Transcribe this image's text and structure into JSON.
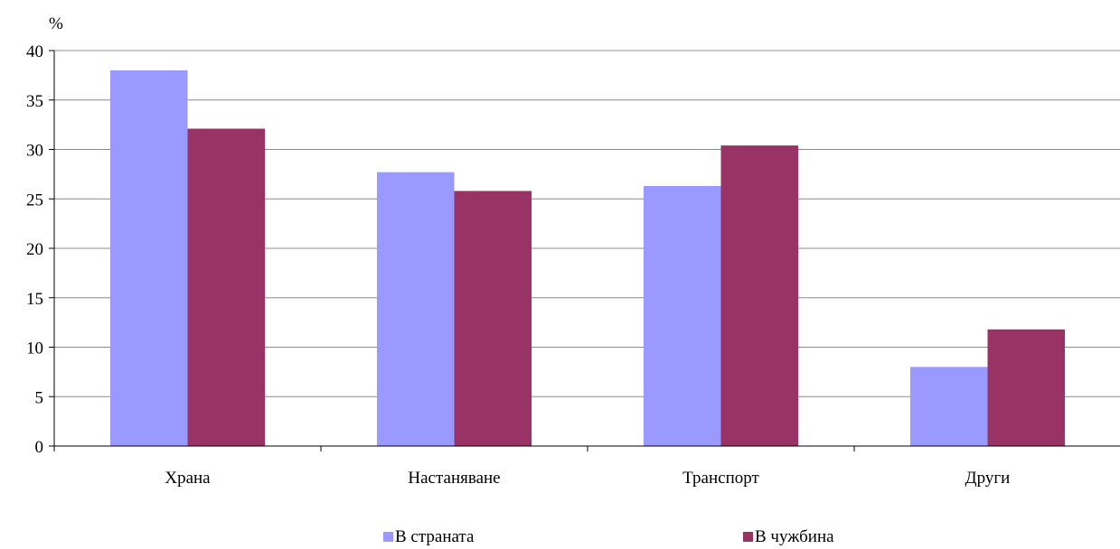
{
  "chart_data": {
    "type": "bar",
    "ylabel": "%",
    "ylim": [
      0,
      40
    ],
    "yticks": [
      0,
      5,
      10,
      15,
      20,
      25,
      30,
      35,
      40
    ],
    "grid": true,
    "legend_position": "bottom",
    "categories": [
      "Храна",
      "Настаняване",
      "Транспорт",
      "Други"
    ],
    "series": [
      {
        "name": "В страната",
        "color": "#9999ff",
        "values": [
          38.0,
          27.7,
          26.3,
          8.0
        ]
      },
      {
        "name": "В чужбина",
        "color": "#993366",
        "values": [
          32.1,
          25.8,
          30.4,
          11.8
        ]
      }
    ]
  }
}
